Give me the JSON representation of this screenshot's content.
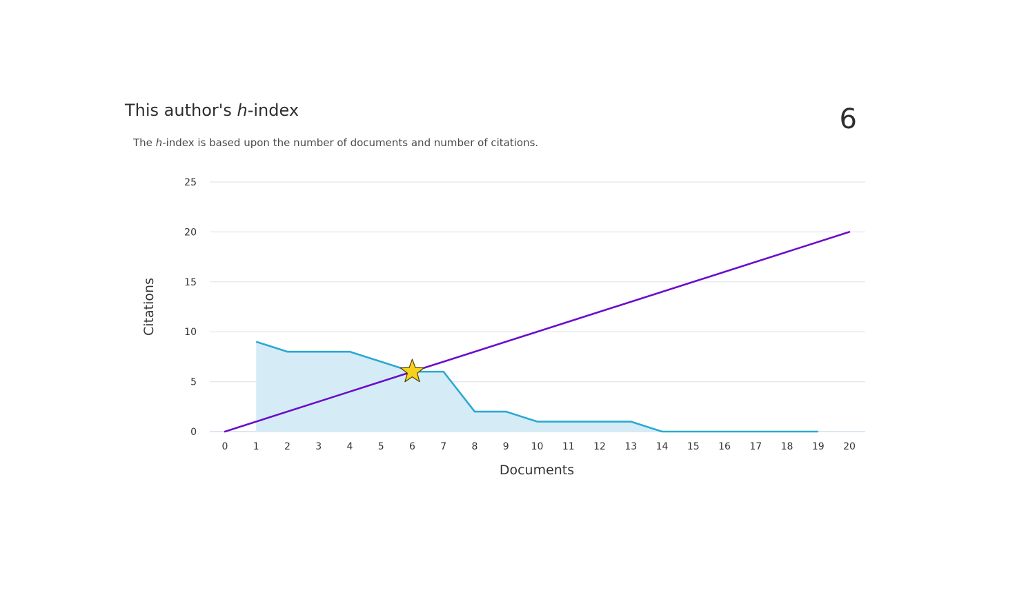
{
  "header": {
    "title_prefix": "This author's ",
    "title_h": "h",
    "title_suffix": "-index",
    "subtitle_prefix": "The ",
    "subtitle_h": "h",
    "subtitle_suffix": "-index is based upon the number of documents and number of citations.",
    "h_index_value": "6"
  },
  "colors": {
    "citations_line": "#2aa9d2",
    "citations_fill": "#d5ecf6",
    "diagonal_line": "#6a0dca",
    "grid": "#e4e4ee",
    "star_fill": "#f7d21c",
    "star_stroke": "#4a4000"
  },
  "chart_data": {
    "type": "area",
    "xlabel": "Documents",
    "ylabel": "Citations",
    "xlim": [
      0,
      20
    ],
    "ylim": [
      0,
      25
    ],
    "x_ticks": [
      0,
      1,
      2,
      3,
      4,
      5,
      6,
      7,
      8,
      9,
      10,
      11,
      12,
      13,
      14,
      15,
      16,
      17,
      18,
      19,
      20
    ],
    "y_ticks": [
      0,
      5,
      10,
      15,
      20,
      25
    ],
    "grid": true,
    "series": [
      {
        "kind": "area",
        "x": [
          1,
          2,
          3,
          4,
          5,
          6,
          7,
          8,
          9,
          10,
          11,
          12,
          13,
          14,
          15,
          16,
          17,
          18,
          19
        ],
        "values": [
          9,
          8,
          8,
          8,
          7,
          6,
          6,
          2,
          2,
          1,
          1,
          1,
          1,
          0,
          0,
          0,
          0,
          0,
          0
        ]
      },
      {
        "kind": "line",
        "x": [
          0,
          20
        ],
        "values": [
          0,
          20
        ]
      }
    ],
    "marker": {
      "shape": "star",
      "x": 6,
      "y": 6
    }
  }
}
